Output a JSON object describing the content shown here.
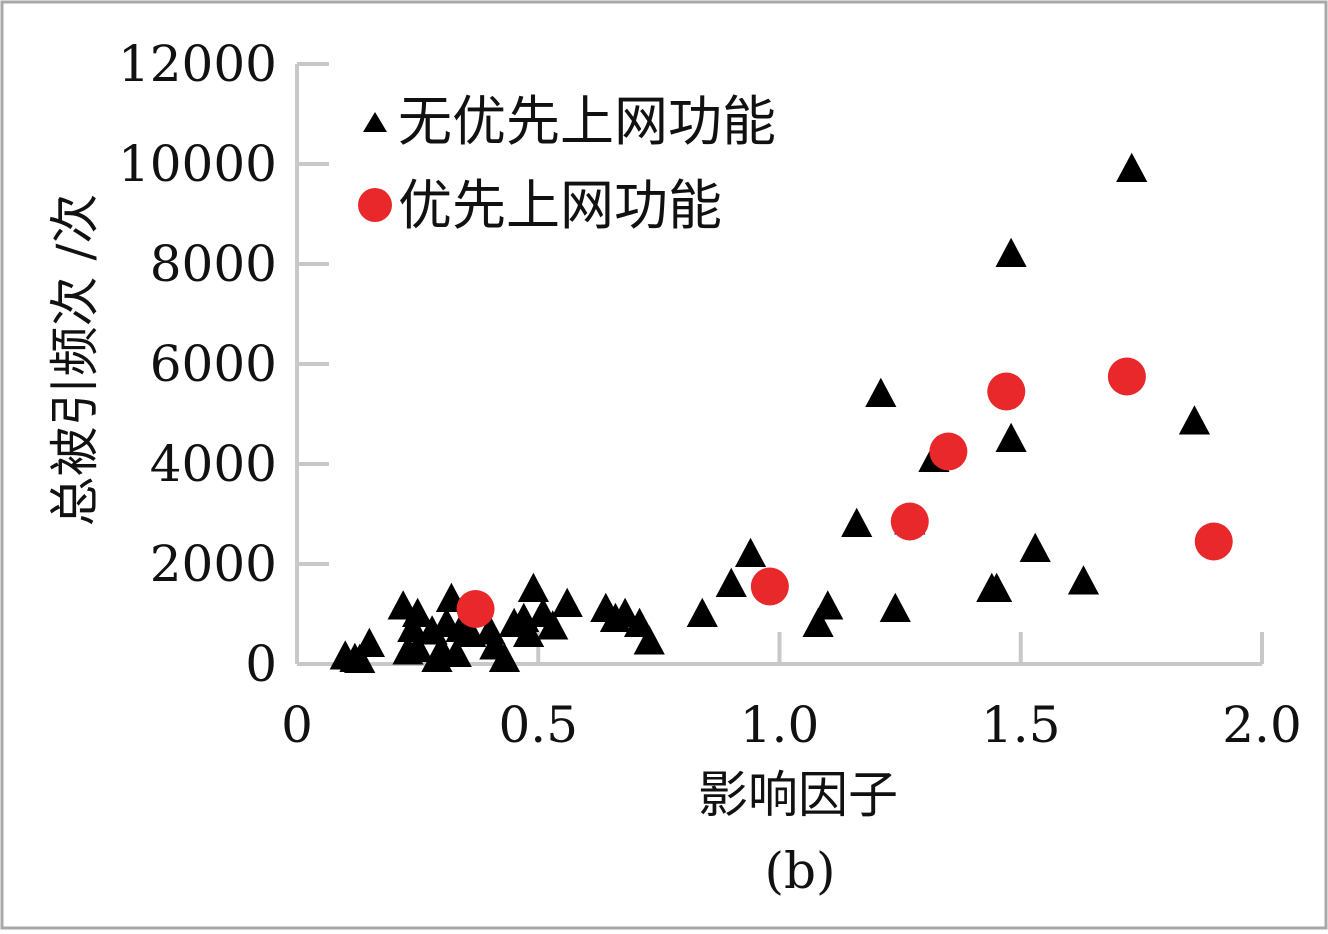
{
  "chart_data": {
    "type": "scatter",
    "xlabel": "影响因子",
    "ylabel": "总被引频次 /次",
    "caption": "(b)",
    "xlim": [
      0,
      2.0
    ],
    "ylim": [
      0,
      12000
    ],
    "x_ticks": [
      0,
      0.5,
      1.0,
      1.5,
      2.0
    ],
    "x_tick_labels": [
      "0",
      "0.5",
      "1.0",
      "1.5",
      "2.0"
    ],
    "y_ticks": [
      0,
      2000,
      4000,
      6000,
      8000,
      10000,
      12000
    ],
    "y_tick_labels": [
      "0",
      "2000",
      "4000",
      "6000",
      "8000",
      "10000",
      "12000"
    ],
    "grid": false,
    "legend_position": "top-left",
    "axis_color": "#c8c8c8",
    "series": [
      {
        "name": "无优先上网功能",
        "marker": "triangle",
        "color": "#000000",
        "points": [
          [
            0.1,
            150
          ],
          [
            0.12,
            100
          ],
          [
            0.13,
            80
          ],
          [
            0.15,
            400
          ],
          [
            0.22,
            1150
          ],
          [
            0.23,
            250
          ],
          [
            0.24,
            700
          ],
          [
            0.25,
            300
          ],
          [
            0.25,
            1000
          ],
          [
            0.28,
            650
          ],
          [
            0.29,
            100
          ],
          [
            0.3,
            250
          ],
          [
            0.31,
            800
          ],
          [
            0.32,
            1300
          ],
          [
            0.33,
            200
          ],
          [
            0.34,
            700
          ],
          [
            0.36,
            600
          ],
          [
            0.4,
            650
          ],
          [
            0.41,
            350
          ],
          [
            0.43,
            100
          ],
          [
            0.45,
            800
          ],
          [
            0.47,
            900
          ],
          [
            0.48,
            600
          ],
          [
            0.49,
            1500
          ],
          [
            0.51,
            1000
          ],
          [
            0.53,
            750
          ],
          [
            0.56,
            1200
          ],
          [
            0.64,
            1100
          ],
          [
            0.66,
            900
          ],
          [
            0.68,
            1000
          ],
          [
            0.71,
            800
          ],
          [
            0.73,
            450
          ],
          [
            0.84,
            1000
          ],
          [
            0.9,
            1600
          ],
          [
            0.94,
            2200
          ],
          [
            1.08,
            800
          ],
          [
            1.1,
            1150
          ],
          [
            1.16,
            2800
          ],
          [
            1.21,
            5400
          ],
          [
            1.24,
            1100
          ],
          [
            1.27,
            2850
          ],
          [
            1.32,
            4100
          ],
          [
            1.44,
            1500
          ],
          [
            1.45,
            1500
          ],
          [
            1.48,
            8200
          ],
          [
            1.48,
            4500
          ],
          [
            1.53,
            2300
          ],
          [
            1.63,
            1650
          ],
          [
            1.73,
            9900
          ],
          [
            1.86,
            4850
          ]
        ]
      },
      {
        "name": "优先上网功能",
        "marker": "circle",
        "color": "#e8282a",
        "points": [
          [
            0.37,
            1100
          ],
          [
            0.98,
            1550
          ],
          [
            1.27,
            2850
          ],
          [
            1.35,
            4250
          ],
          [
            1.47,
            5450
          ],
          [
            1.72,
            5750
          ],
          [
            1.9,
            2450
          ]
        ]
      }
    ]
  }
}
